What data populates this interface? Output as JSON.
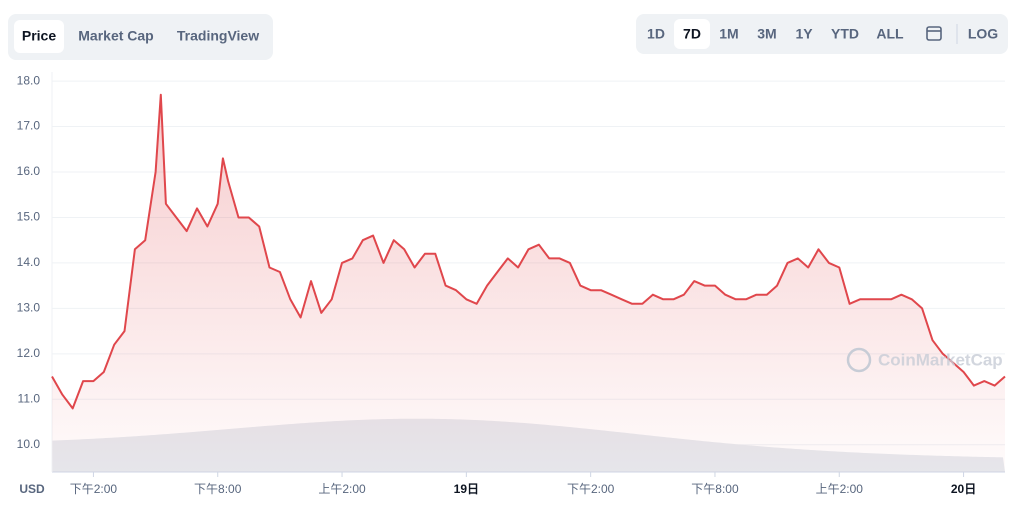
{
  "tabs": [
    "Price",
    "Market Cap",
    "TradingView"
  ],
  "ranges": [
    "1D",
    "7D",
    "1M",
    "3M",
    "1Y",
    "YTD",
    "ALL"
  ],
  "log_button": "LOG",
  "watermark": "CoinMarketCap",
  "chart_data": {
    "type": "line",
    "y_unit": "USD",
    "color": "#e0474c",
    "grid": true,
    "x": [
      0,
      0.5,
      1,
      1.5,
      2,
      2.5,
      3,
      3.5,
      4,
      4.5,
      5,
      5.25,
      5.5,
      6,
      6.5,
      7,
      7.5,
      8,
      8.25,
      8.5,
      9,
      9.5,
      10,
      10.5,
      11,
      11.5,
      12,
      12.5,
      13,
      13.5,
      14,
      14.5,
      15,
      15.5,
      16,
      16.5,
      17,
      17.5,
      18,
      18.5,
      19,
      19.5,
      20,
      20.5,
      21,
      21.5,
      22,
      22.5,
      23,
      23.5,
      24,
      24.5,
      25,
      25.5,
      26,
      26.5,
      27,
      27.5,
      28,
      28.5,
      29,
      29.5,
      30,
      30.5,
      31,
      31.5,
      32,
      32.5,
      33,
      33.5,
      34,
      34.5,
      35,
      35.5,
      36,
      36.5,
      37,
      37.5,
      38,
      38.5,
      39,
      39.5,
      40,
      40.5,
      41,
      41.5,
      42,
      42.5,
      43,
      43.5,
      44,
      44.5,
      45,
      45.5,
      46
    ],
    "series": [
      {
        "name": "Price",
        "values": [
          11.5,
          11.1,
          10.8,
          11.4,
          11.4,
          11.6,
          12.2,
          12.5,
          14.3,
          14.5,
          16.0,
          17.7,
          15.3,
          15.0,
          14.7,
          15.2,
          14.8,
          15.3,
          16.3,
          15.8,
          15.0,
          15.0,
          14.8,
          13.9,
          13.8,
          13.2,
          12.8,
          13.6,
          12.9,
          13.2,
          14.0,
          14.1,
          14.5,
          14.6,
          14.0,
          14.5,
          14.3,
          13.9,
          14.2,
          14.2,
          13.5,
          13.4,
          13.2,
          13.1,
          13.5,
          13.8,
          14.1,
          13.9,
          14.3,
          14.4,
          14.1,
          14.1,
          14.0,
          13.5,
          13.4,
          13.4,
          13.3,
          13.2,
          13.1,
          13.1,
          13.3,
          13.2,
          13.2,
          13.3,
          13.6,
          13.5,
          13.5,
          13.3,
          13.2,
          13.2,
          13.3,
          13.3,
          13.5,
          14.0,
          14.1,
          13.9,
          14.3,
          14.0,
          13.9,
          13.1,
          13.2,
          13.2,
          13.2,
          13.2,
          13.3,
          13.2,
          13.0,
          12.3,
          12.0,
          11.8,
          11.6,
          11.3,
          11.4,
          11.3,
          11.5
        ]
      }
    ],
    "xlim": [
      0,
      46
    ],
    "xticks": [
      {
        "value": 2,
        "label": "下午2:00"
      },
      {
        "value": 8,
        "label": "下午8:00"
      },
      {
        "value": 14,
        "label": "上午2:00"
      },
      {
        "value": 20,
        "label": "19日"
      },
      {
        "value": 26,
        "label": "下午2:00"
      },
      {
        "value": 32,
        "label": "下午8:00"
      },
      {
        "value": 38,
        "label": "上午2:00"
      },
      {
        "value": 44,
        "label": "20日"
      }
    ],
    "ylim": [
      9.4,
      18.2
    ],
    "yticks": [
      {
        "value": 10,
        "label": "10.0"
      },
      {
        "value": 11,
        "label": "11.0"
      },
      {
        "value": 12,
        "label": "12.0"
      },
      {
        "value": 13,
        "label": "13.0"
      },
      {
        "value": 14,
        "label": "14.0"
      },
      {
        "value": 15,
        "label": "15.0"
      },
      {
        "value": 16,
        "label": "16.0"
      },
      {
        "value": 17,
        "label": "17.0"
      },
      {
        "value": 18,
        "label": "18.0"
      }
    ]
  }
}
